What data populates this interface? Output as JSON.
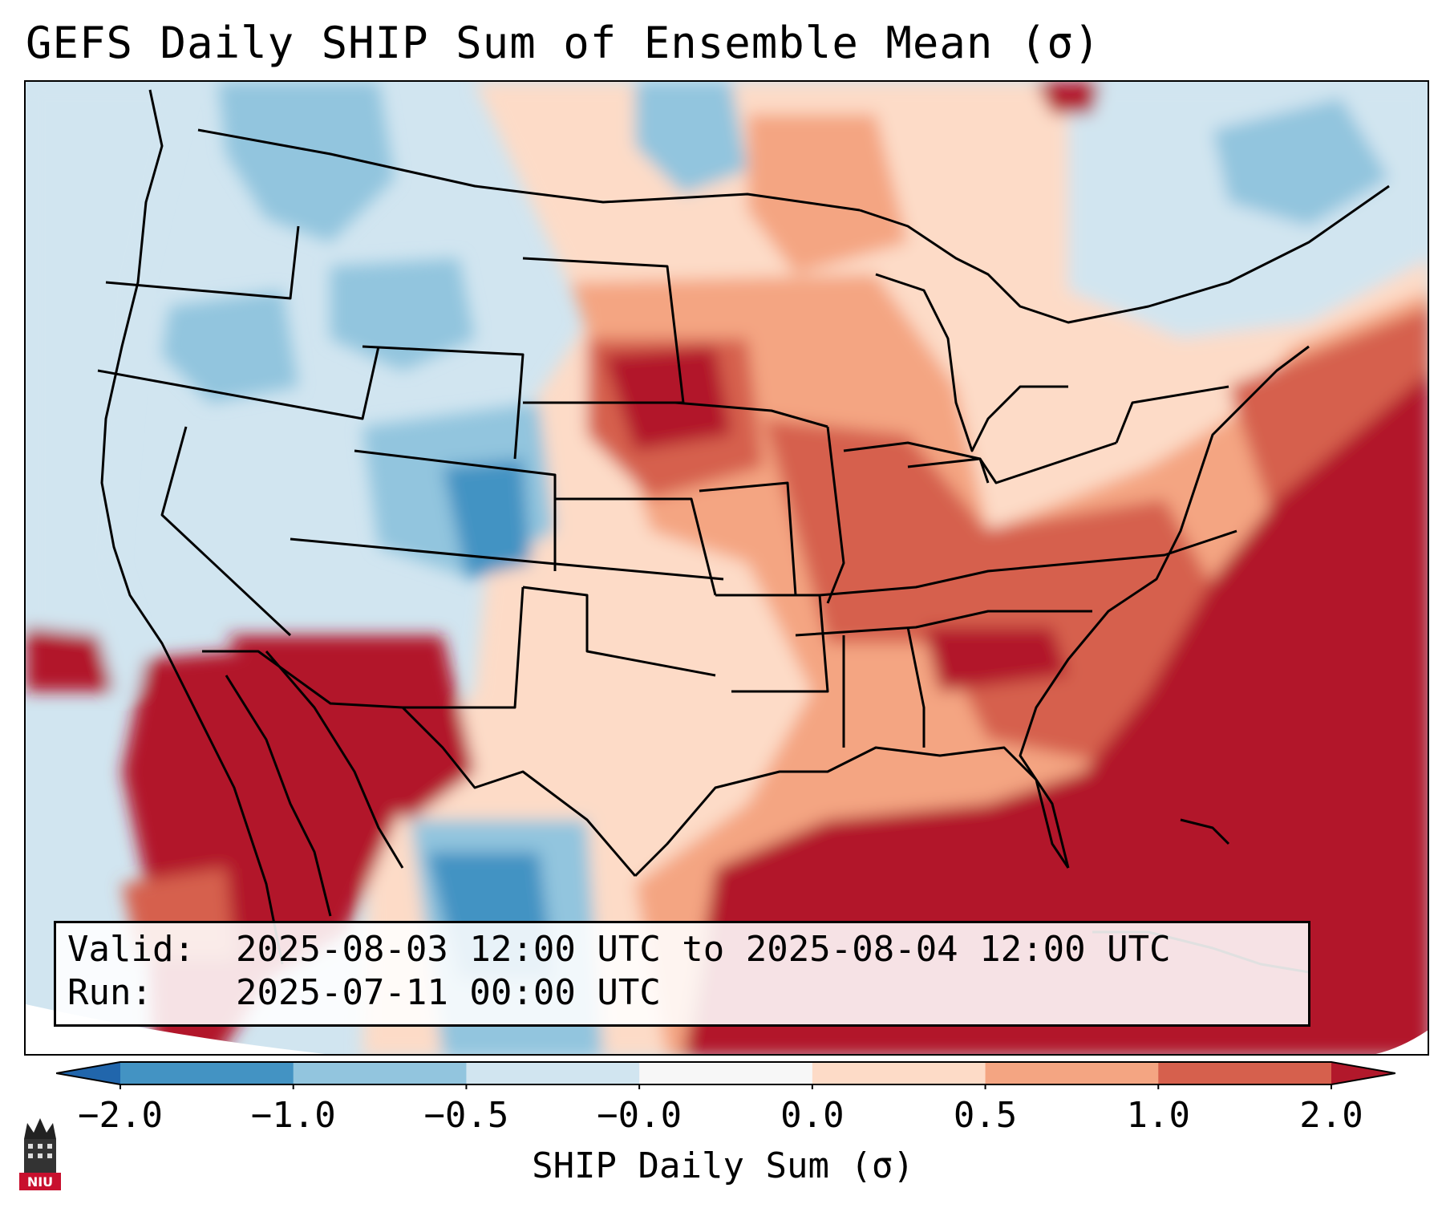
{
  "title": "GEFS Daily SHIP Sum of Ensemble Mean (σ)",
  "info": {
    "valid_key": "Valid:",
    "valid_value": "2025-08-03 12:00 UTC to 2025-08-04 12:00 UTC",
    "run_key": "Run:",
    "run_value": "2025-07-11 00:00 UTC"
  },
  "colorbar": {
    "label": "SHIP Daily Sum (σ)",
    "tick_labels": [
      "−2.0",
      "−1.0",
      "−0.5",
      "−0.0",
      "0.0",
      "0.5",
      "1.0",
      "2.0"
    ],
    "bin_colors": [
      "#4393c3",
      "#92c5de",
      "#d1e5f0",
      "#f7f7f7",
      "#fddbc7",
      "#f4a582",
      "#d6604d",
      "#b2182b"
    ],
    "extend_low_color": "#2166ac",
    "extend_high_color": "#b2182b"
  },
  "logo": {
    "text": "NIU",
    "color": "#c8102e"
  }
}
